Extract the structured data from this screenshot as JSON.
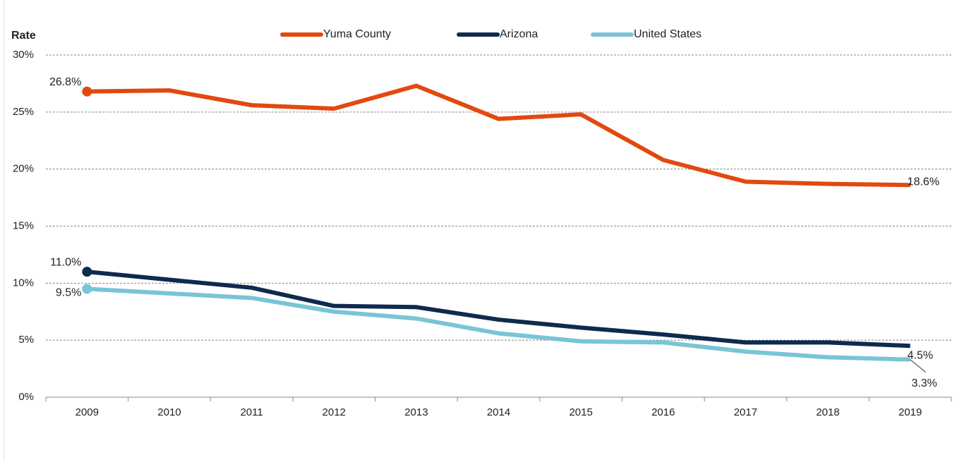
{
  "chart_data": {
    "type": "line",
    "y_label": "Rate",
    "categories": [
      "2009",
      "2010",
      "2011",
      "2012",
      "2013",
      "2014",
      "2015",
      "2016",
      "2017",
      "2018",
      "2019"
    ],
    "series": [
      {
        "name": "Yuma County",
        "color": "#e2490f",
        "values": [
          26.8,
          26.9,
          25.6,
          25.3,
          27.3,
          24.4,
          24.8,
          20.8,
          18.9,
          18.7,
          18.6
        ],
        "value_labels": [
          "26.8%",
          null,
          null,
          null,
          null,
          null,
          null,
          null,
          null,
          null,
          "18.6%"
        ]
      },
      {
        "name": "Arizona",
        "color": "#0d2b4e",
        "values": [
          11.0,
          10.3,
          9.6,
          8.0,
          7.9,
          6.8,
          6.1,
          5.5,
          4.8,
          4.8,
          4.5
        ],
        "value_labels": [
          "11.0%",
          null,
          null,
          null,
          null,
          null,
          null,
          null,
          null,
          null,
          "4.5%"
        ]
      },
      {
        "name": "United States",
        "color": "#78c5d6",
        "values": [
          9.5,
          9.1,
          8.7,
          7.5,
          6.9,
          5.6,
          4.9,
          4.8,
          4.0,
          3.5,
          3.3
        ],
        "value_labels": [
          "9.5%",
          null,
          null,
          null,
          null,
          null,
          null,
          null,
          null,
          null,
          "3.3%"
        ]
      }
    ],
    "ylim": [
      0,
      30
    ],
    "yticks": [
      {
        "value": 0,
        "label": "0%"
      },
      {
        "value": 5,
        "label": "5%"
      },
      {
        "value": 10,
        "label": "10%"
      },
      {
        "value": 15,
        "label": "15%"
      },
      {
        "value": 20,
        "label": "20%"
      },
      {
        "value": 25,
        "label": "25%"
      },
      {
        "value": 30,
        "label": "30%"
      }
    ],
    "grid": true,
    "legend": "top"
  }
}
